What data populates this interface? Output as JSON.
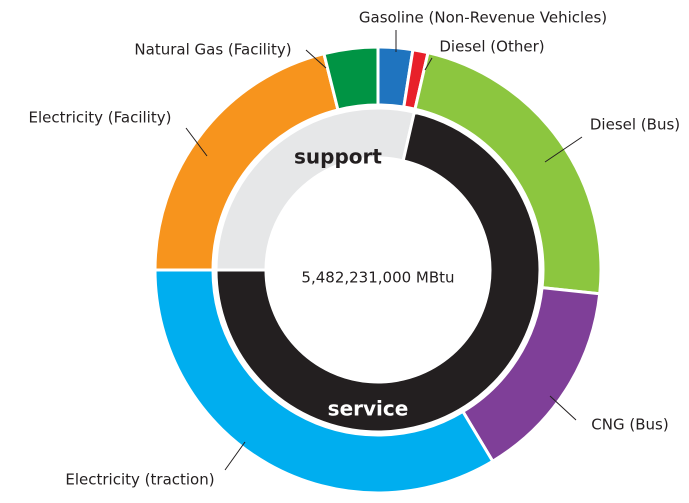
{
  "chart_data": {
    "type": "donut",
    "center_label": "5,482,231,000 MBtu",
    "inner": {
      "categories": [
        "support",
        "service"
      ],
      "values": [
        28.6,
        71.4
      ],
      "colors": [
        "#e6e7e8",
        "#231f20"
      ],
      "label_colors": [
        "#231f20",
        "#ffffff"
      ]
    },
    "outer": {
      "categories": [
        "Gasoline (Non-Revenue Vehicles)",
        "Diesel (Other)",
        "Diesel (Bus)",
        "CNG (Bus)",
        "Electricity (traction)",
        "Electricity (Facility)",
        "Natural Gas (Facility)"
      ],
      "values": [
        2.5,
        1.1,
        23.1,
        14.7,
        33.6,
        21.1,
        3.9
      ],
      "colors": [
        "#1f74bf",
        "#e8202a",
        "#8cc63f",
        "#7f3f98",
        "#00aeef",
        "#f7941d",
        "#009444"
      ]
    }
  }
}
